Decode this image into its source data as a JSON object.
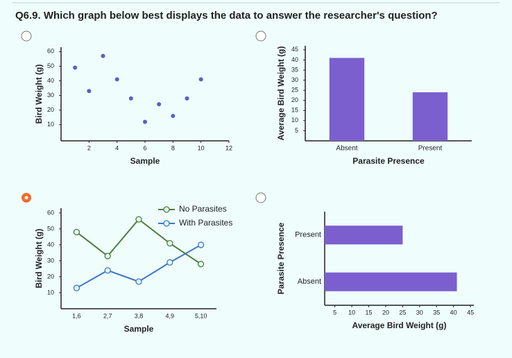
{
  "question": "Q6.9. Which graph below best displays the data to answer the researcher's question?",
  "selected_option": 2,
  "chart_data": [
    {
      "type": "scatter",
      "xlabel": "Sample",
      "ylabel": "Bird Weight (g)",
      "color": "#5a5fc8",
      "x": [
        1,
        2,
        3,
        4,
        5,
        6,
        7,
        8,
        9,
        10
      ],
      "values": [
        49,
        33,
        57,
        41,
        28,
        12,
        24,
        16,
        28,
        41
      ],
      "xlim": [
        0,
        12
      ],
      "xticks": [
        2,
        4,
        6,
        8,
        10,
        12
      ],
      "ylim": [
        -1,
        63
      ],
      "yticks": [
        10,
        20,
        30,
        40,
        50,
        60
      ]
    },
    {
      "type": "bar",
      "xlabel": "Parasite Presence",
      "ylabel": "Average Bird Weight (g)",
      "color": "#7b5fcf",
      "categories": [
        "Absent",
        "Present"
      ],
      "values": [
        41,
        24
      ],
      "ylim": [
        0,
        47
      ],
      "yticks": [
        5,
        10,
        15,
        20,
        25,
        30,
        35,
        40,
        45
      ]
    },
    {
      "type": "line",
      "xlabel": "Sample",
      "ylabel": "Bird Weight (g)",
      "categories": [
        "1,6",
        "2,7",
        "3,8",
        "4,9",
        "5,10"
      ],
      "series": [
        {
          "name": "No Parasites",
          "color": "#4e7d3a",
          "values": [
            48,
            33,
            56,
            41,
            28
          ]
        },
        {
          "name": "With Parasites",
          "color": "#3a78c8",
          "values": [
            13,
            24,
            17,
            29,
            40
          ]
        }
      ],
      "ylim": [
        0,
        63
      ],
      "yticks": [
        10,
        20,
        30,
        40,
        50,
        60
      ]
    },
    {
      "type": "barh",
      "xlabel": "Average Bird Weight (g)",
      "ylabel": "Parasite Presence",
      "color": "#7b5fcf",
      "categories": [
        "Present",
        "Absent"
      ],
      "values": [
        25,
        41
      ],
      "xlim": [
        2,
        46
      ],
      "xticks": [
        5,
        10,
        15,
        20,
        25,
        30,
        35,
        40,
        45
      ]
    }
  ]
}
